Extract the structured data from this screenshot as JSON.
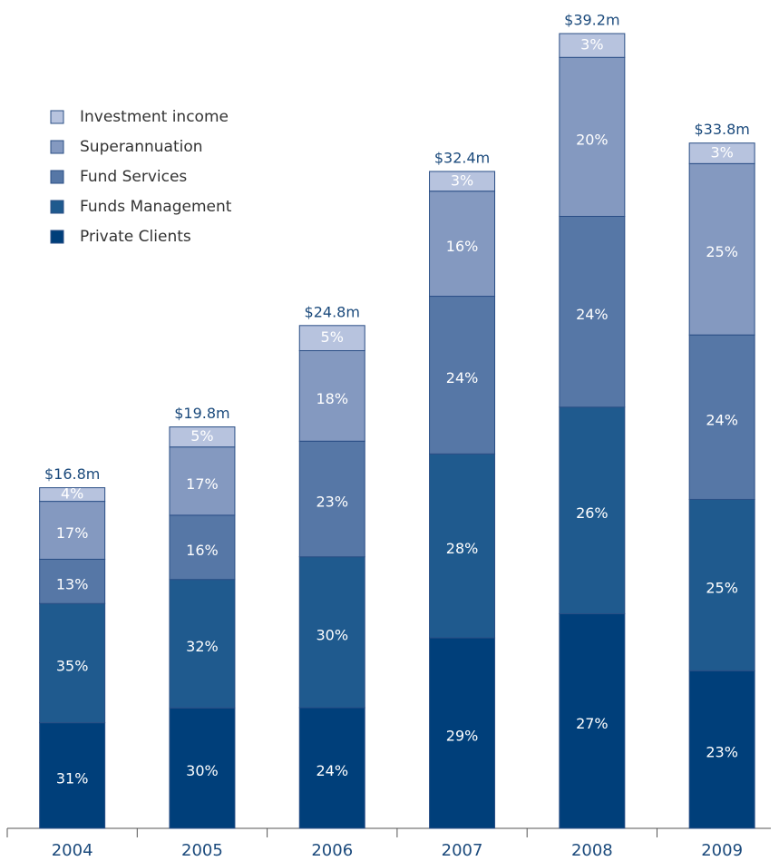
{
  "chart_data": {
    "type": "stacked_bar",
    "categories": [
      "2004",
      "2005",
      "2006",
      "2007",
      "2008",
      "2009"
    ],
    "totals": {
      "values": [
        16.8,
        19.8,
        24.8,
        32.4,
        39.2,
        33.8
      ],
      "value_labels": [
        "$16.8m",
        "$19.8m",
        "$24.8m",
        "$32.4m",
        "$39.2m",
        "$33.8m"
      ]
    },
    "series": [
      {
        "name": "Private Clients",
        "color": "#003f7a",
        "values": [
          31,
          30,
          24,
          29,
          27,
          23
        ],
        "value_labels": [
          "31%",
          "30%",
          "24%",
          "29%",
          "27%",
          "23%"
        ]
      },
      {
        "name": "Funds Management",
        "color": "#1f5a8e",
        "values": [
          35,
          32,
          30,
          28,
          26,
          25
        ],
        "value_labels": [
          "35%",
          "32%",
          "30%",
          "28%",
          "26%",
          "25%"
        ]
      },
      {
        "name": "Fund Services",
        "color": "#5677a6",
        "values": [
          13,
          16,
          23,
          24,
          24,
          24
        ],
        "value_labels": [
          "13%",
          "16%",
          "23%",
          "24%",
          "24%",
          "24%"
        ]
      },
      {
        "name": "Superannuation",
        "color": "#8499c0",
        "values": [
          17,
          17,
          18,
          16,
          20,
          25
        ],
        "value_labels": [
          "17%",
          "17%",
          "18%",
          "16%",
          "20%",
          "25%"
        ]
      },
      {
        "name": "Investment income",
        "color": "#b7c3de",
        "values": [
          4,
          5,
          5,
          3,
          3,
          3
        ],
        "value_labels": [
          "4%",
          "5%",
          "5%",
          "3%",
          "3%",
          "3%"
        ]
      }
    ],
    "legend": "upper left"
  }
}
